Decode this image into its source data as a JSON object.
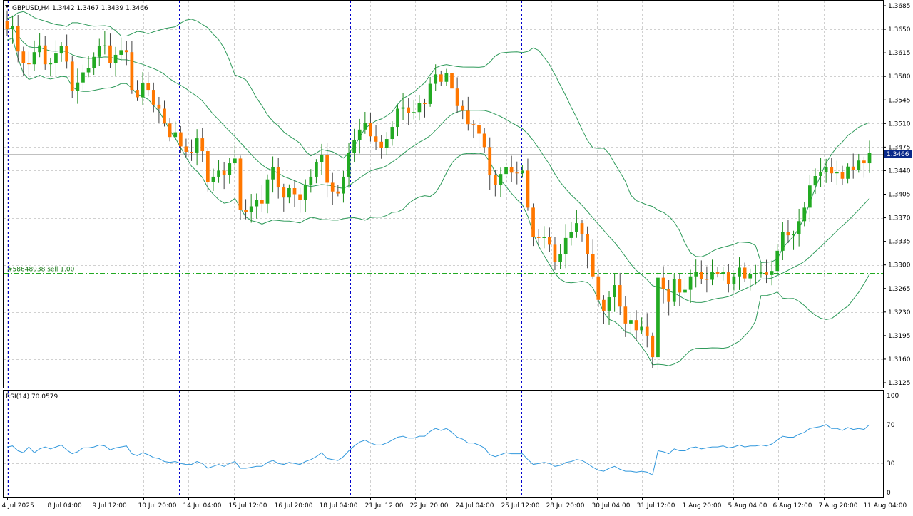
{
  "header": {
    "symbol_line": "GBPUSD,H4  1.3442 1.3467 1.3439 1.3466",
    "collapse_icon": "triangle-down-icon"
  },
  "order_line": {
    "label": "#58648938 sell 1.00",
    "price": 1.3288
  },
  "current_price_label": "1.3466",
  "rsi_header": "RSI(14) 70.0579",
  "colors": {
    "bull": "#22aa22",
    "bear": "#ff7700",
    "bands": "#2e9a5a",
    "rsi": "#3399dd",
    "grid": "#d0d0d0",
    "separator": "#0000cc",
    "price_tag": "#0a2a8a"
  },
  "chart_data": [
    {
      "type": "candlestick",
      "symbol": "GBPUSD",
      "timeframe": "H4",
      "ylim": [
        1.3125,
        1.3685
      ],
      "y_ticks": [
        "1.3685",
        "1.3650",
        "1.3615",
        "1.3580",
        "1.3545",
        "1.3510",
        "1.3475",
        "1.3440",
        "1.3405",
        "1.3370",
        "1.3335",
        "1.3300",
        "1.3265",
        "1.3230",
        "1.3195",
        "1.3160",
        "1.3125"
      ],
      "x_ticks": [
        "4 Jul 2025",
        "8 Jul 04:00",
        "9 Jul 12:00",
        "10 Jul 20:00",
        "14 Jul 04:00",
        "15 Jul 12:00",
        "16 Jul 20:00",
        "18 Jul 04:00",
        "21 Jul 12:00",
        "22 Jul 20:00",
        "24 Jul 04:00",
        "25 Jul 12:00",
        "28 Jul 20:00",
        "30 Jul 04:00",
        "31 Jul 12:00",
        "1 Aug 20:00",
        "5 Aug 04:00",
        "6 Aug 12:00",
        "7 Aug 20:00",
        "11 Aug 04:00"
      ],
      "close": [
        1.365,
        1.3655,
        1.3617,
        1.36,
        1.3598,
        1.3616,
        1.3626,
        1.3598,
        1.36,
        1.3614,
        1.3625,
        1.3602,
        1.3559,
        1.3571,
        1.3586,
        1.3592,
        1.3609,
        1.3625,
        1.3626,
        1.36,
        1.3612,
        1.3619,
        1.3616,
        1.356,
        1.3549,
        1.357,
        1.356,
        1.3538,
        1.3532,
        1.351,
        1.349,
        1.3497,
        1.3476,
        1.3468,
        1.3467,
        1.3488,
        1.3469,
        1.3423,
        1.3431,
        1.344,
        1.3434,
        1.3451,
        1.3458,
        1.3382,
        1.3379,
        1.3387,
        1.3397,
        1.3391,
        1.3427,
        1.3445,
        1.3415,
        1.34,
        1.3414,
        1.3405,
        1.3397,
        1.3419,
        1.3431,
        1.3453,
        1.3463,
        1.3422,
        1.3409,
        1.3406,
        1.3431,
        1.3466,
        1.3486,
        1.3501,
        1.3511,
        1.3491,
        1.3483,
        1.3474,
        1.3487,
        1.3505,
        1.3532,
        1.3534,
        1.3526,
        1.3527,
        1.354,
        1.3539,
        1.3569,
        1.3583,
        1.3572,
        1.3585,
        1.3562,
        1.3536,
        1.3529,
        1.3509,
        1.3508,
        1.3495,
        1.3475,
        1.3433,
        1.3419,
        1.3435,
        1.3445,
        1.3437,
        1.3436,
        1.344,
        1.3385,
        1.3341,
        1.334,
        1.3341,
        1.333,
        1.3304,
        1.3316,
        1.334,
        1.3349,
        1.3362,
        1.3346,
        1.3316,
        1.3283,
        1.3248,
        1.3232,
        1.3252,
        1.327,
        1.3238,
        1.3213,
        1.3218,
        1.3203,
        1.3208,
        1.3195,
        1.3163,
        1.3281,
        1.3264,
        1.3245,
        1.3279,
        1.3259,
        1.3263,
        1.3283,
        1.329,
        1.3279,
        1.3278,
        1.329,
        1.3287,
        1.3289,
        1.3272,
        1.3283,
        1.3296,
        1.328,
        1.3286,
        1.3287,
        1.3289,
        1.3285,
        1.3291,
        1.3321,
        1.3349,
        1.3344,
        1.3346,
        1.3365,
        1.3385,
        1.3418,
        1.3432,
        1.3438,
        1.3445,
        1.3436,
        1.3438,
        1.3428,
        1.3446,
        1.3441,
        1.3455,
        1.3451,
        1.3466
      ],
      "rsi": {
        "name": "RSI(14)",
        "value": 70.0579,
        "ylim": [
          0,
          100
        ],
        "y_ticks": [
          "100",
          "70",
          "30",
          "0"
        ],
        "levels": [
          70,
          30
        ],
        "values": [
          47,
          48,
          43,
          41,
          47,
          41,
          45,
          47,
          45,
          47,
          49,
          44,
          40,
          42,
          46,
          46,
          47,
          49,
          48,
          44,
          46,
          47,
          48,
          40,
          38,
          41,
          39,
          36,
          35,
          32,
          31,
          32,
          30,
          29,
          29,
          32,
          30,
          25,
          27,
          29,
          27,
          30,
          32,
          25,
          25,
          26,
          27,
          27,
          31,
          33,
          30,
          29,
          31,
          30,
          29,
          32,
          34,
          37,
          41,
          35,
          34,
          33,
          37,
          43,
          48,
          52,
          54,
          51,
          49,
          49,
          51,
          54,
          57,
          58,
          56,
          56,
          58,
          58,
          63,
          66,
          64,
          66,
          62,
          57,
          55,
          51,
          51,
          49,
          46,
          39,
          37,
          39,
          41,
          40,
          40,
          40,
          34,
          29,
          30,
          31,
          30,
          27,
          28,
          31,
          32,
          34,
          33,
          30,
          26,
          23,
          22,
          25,
          27,
          24,
          22,
          22,
          21,
          22,
          21,
          18,
          43,
          42,
          40,
          45,
          43,
          43,
          46,
          47,
          45,
          46,
          47,
          47,
          48,
          46,
          47,
          49,
          47,
          48,
          48,
          49,
          48,
          50,
          54,
          58,
          57,
          57,
          60,
          62,
          66,
          67,
          68,
          70,
          66,
          66,
          64,
          67,
          65,
          66,
          65,
          70
        ]
      },
      "bollinger": {
        "period": 20,
        "deviation": 2
      }
    }
  ]
}
